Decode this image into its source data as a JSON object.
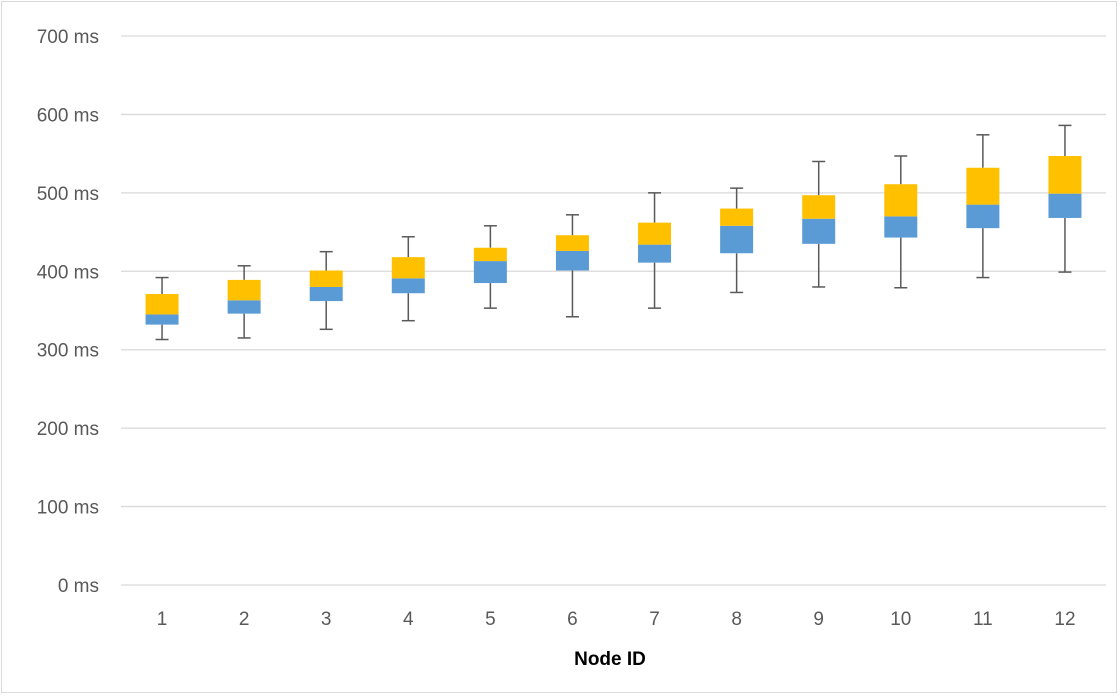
{
  "chart_data": {
    "type": "box",
    "title": "",
    "xlabel": "Node ID",
    "ylabel": "",
    "ylim": [
      0,
      700
    ],
    "y_tick_values": [
      0,
      100,
      200,
      300,
      400,
      500,
      600,
      700
    ],
    "y_tick_labels": [
      "0 ms",
      "100 ms",
      "200 ms",
      "300 ms",
      "400 ms",
      "500 ms",
      "600 ms",
      "700 ms"
    ],
    "grid": true,
    "legend": "none",
    "categories": [
      "1",
      "2",
      "3",
      "4",
      "5",
      "6",
      "7",
      "8",
      "9",
      "10",
      "11",
      "12"
    ],
    "min": [
      313,
      315,
      326,
      337,
      353,
      342,
      353,
      373,
      380,
      379,
      392,
      399
    ],
    "q1": [
      332,
      346,
      362,
      372,
      385,
      401,
      411,
      423,
      435,
      443,
      455,
      468
    ],
    "median": [
      345,
      363,
      380,
      391,
      413,
      426,
      434,
      458,
      467,
      470,
      485,
      499
    ],
    "q3": [
      371,
      389,
      401,
      418,
      430,
      446,
      462,
      480,
      497,
      511,
      532,
      547
    ],
    "max": [
      392,
      407,
      425,
      444,
      458,
      472,
      500,
      506,
      540,
      547,
      574,
      586
    ],
    "colors": {
      "lower_box": "#5b9bd5",
      "upper_box": "#ffc000",
      "whisker": "#595959",
      "gridline": "#d9d9d9"
    }
  }
}
